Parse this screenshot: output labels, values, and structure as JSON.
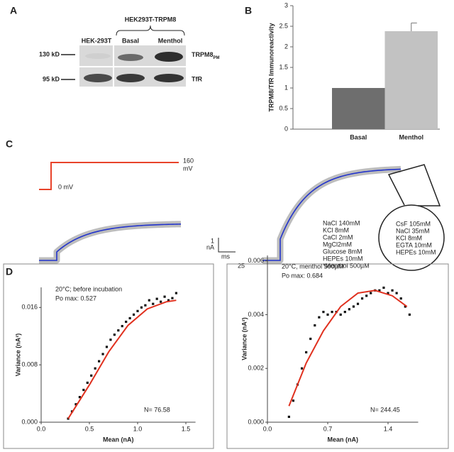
{
  "panel_labels": [
    "A",
    "B",
    "C",
    "D"
  ],
  "blot": {
    "group": "HEK293T-TRPM8",
    "lanes": [
      "HEK-293T",
      "Basal",
      "Menthol"
    ],
    "markers": [
      "130 kD",
      "95 kD"
    ],
    "bands": [
      {
        "name": "TRPM8",
        "sub": "PM"
      },
      {
        "name": "TfR"
      }
    ]
  },
  "traces": {
    "step_high": "160",
    "step_unit": "mV",
    "step_low": "0 mV",
    "scale_y": "1",
    "scale_y_unit": "nA",
    "scale_x_unit": "ms",
    "scale_x": "25",
    "bath": [
      "NaCl 140mM",
      "KCl 8mM",
      "CaCl 2mM",
      "MgCl2mM",
      "Glucose 8mM",
      "HEPEs 10mM",
      "*Menthol 500µM"
    ],
    "pipette": [
      "CsF 105mM",
      "NaCl 35mM",
      "KCl 8mM",
      "EGTA 10mM",
      "HEPEs 10mM"
    ]
  },
  "chart_data": [
    {
      "type": "bar",
      "categories": [
        "Basal",
        "Menthol"
      ],
      "values": [
        1,
        2.38
      ],
      "errors": [
        null,
        0.2
      ],
      "colors": [
        "#6e6e6e",
        "#c2c2c2"
      ],
      "y_label": "TRPM8/TfR Immunoreactivity",
      "ylim": [
        0,
        3
      ],
      "yticks": [
        0,
        0.5,
        1,
        1.5,
        2,
        2.5,
        3
      ],
      "grid": false
    },
    {
      "type": "scatter",
      "x_label": "Mean (nA)",
      "y_label": "Variance (nA²)",
      "annotations": [
        "20°C; before incubation",
        "Po max: 0.527",
        "N= 76.58"
      ],
      "xlim": [
        0,
        1.6
      ],
      "xticks": [
        {
          "value": 0,
          "label": "0.0"
        },
        {
          "value": 0.5,
          "label": "0.5"
        },
        {
          "value": 1,
          "label": "1.0"
        },
        {
          "value": 1.5,
          "label": "1.5"
        }
      ],
      "ylim": [
        0,
        0.0188
      ],
      "yticks": [
        {
          "value": 0,
          "label": "0.000"
        },
        {
          "value": 0.008,
          "label": "0.008"
        },
        {
          "value": 0.016,
          "label": "0.016"
        }
      ],
      "series": [
        {
          "color": "#111111",
          "style": "points",
          "x": [
            0.28,
            0.32,
            0.36,
            0.4,
            0.44,
            0.48,
            0.52,
            0.56,
            0.6,
            0.64,
            0.68,
            0.72,
            0.76,
            0.8,
            0.84,
            0.88,
            0.92,
            0.96,
            1.0,
            1.04,
            1.08,
            1.12,
            1.16,
            1.2,
            1.24,
            1.28,
            1.32,
            1.36,
            1.4
          ],
          "values": [
            0.0005,
            0.0015,
            0.0025,
            0.0035,
            0.0045,
            0.0055,
            0.0065,
            0.0075,
            0.0085,
            0.0095,
            0.0105,
            0.0115,
            0.0122,
            0.0128,
            0.0134,
            0.014,
            0.0145,
            0.015,
            0.0155,
            0.016,
            0.0163,
            0.017,
            0.0165,
            0.0172,
            0.0168,
            0.0175,
            0.017,
            0.0173,
            0.018
          ]
        },
        {
          "color": "#e0301e",
          "style": "line",
          "x": [
            0.28,
            0.5,
            0.7,
            0.9,
            1.1,
            1.3,
            1.4
          ],
          "values": [
            0.0005,
            0.0052,
            0.0098,
            0.0135,
            0.0158,
            0.0168,
            0.017
          ]
        }
      ]
    },
    {
      "type": "scatter",
      "x_label": "Mean (nA)",
      "y_label": "Variance (nA²)",
      "annotations": [
        "20°C, menthol 500µM",
        "Po max: 0.684",
        "N= 244.45"
      ],
      "xlim": [
        0,
        1.75
      ],
      "xticks": [
        {
          "value": 0,
          "label": "0.0"
        },
        {
          "value": 0.7,
          "label": "0.7"
        },
        {
          "value": 1.4,
          "label": "1.4"
        }
      ],
      "ylim": [
        0,
        0.0062
      ],
      "yticks": [
        {
          "value": 0,
          "label": "0.000"
        },
        {
          "value": 0.002,
          "label": "0.002"
        },
        {
          "value": 0.004,
          "label": "0.004"
        },
        {
          "value": 0.006,
          "label": "0.006"
        }
      ],
      "series": [
        {
          "color": "#111111",
          "style": "points",
          "x": [
            0.25,
            0.3,
            0.35,
            0.4,
            0.45,
            0.5,
            0.55,
            0.6,
            0.65,
            0.7,
            0.75,
            0.8,
            0.85,
            0.9,
            0.95,
            1.0,
            1.05,
            1.1,
            1.15,
            1.2,
            1.25,
            1.3,
            1.35,
            1.4,
            1.45,
            1.5,
            1.55,
            1.6,
            1.65
          ],
          "values": [
            0.0002,
            0.0008,
            0.0014,
            0.002,
            0.0026,
            0.0031,
            0.0036,
            0.0039,
            0.0041,
            0.004,
            0.0041,
            0.0041,
            0.004,
            0.0041,
            0.0042,
            0.0043,
            0.0044,
            0.0046,
            0.0047,
            0.0048,
            0.0049,
            0.0049,
            0.005,
            0.0048,
            0.0049,
            0.0048,
            0.0046,
            0.0043,
            0.004
          ]
        },
        {
          "color": "#e0301e",
          "style": "line",
          "x": [
            0.25,
            0.45,
            0.65,
            0.85,
            1.05,
            1.25,
            1.45,
            1.62
          ],
          "values": [
            0.0006,
            0.0022,
            0.0034,
            0.0043,
            0.0048,
            0.0049,
            0.0047,
            0.0043
          ]
        }
      ]
    }
  ]
}
